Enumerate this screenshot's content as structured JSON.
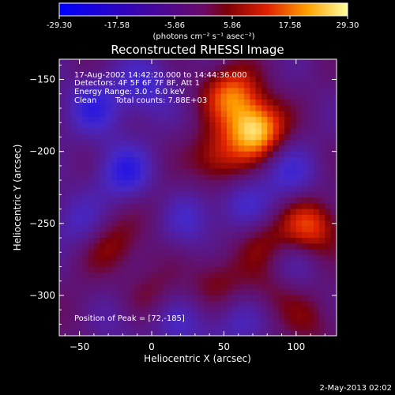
{
  "colorbar": {
    "ticks": [
      "-29.30",
      "-17.58",
      "-5.86",
      "5.86",
      "17.58",
      "29.30"
    ],
    "vmin": -29.3,
    "vmax": 29.3,
    "unit_label": "(photons cm⁻² s⁻¹ asec⁻²)"
  },
  "chart_data": {
    "type": "heatmap",
    "title": "Reconstructed RHESSI Image",
    "xlabel": "Heliocentric X (arcsec)",
    "ylabel": "Heliocentric Y (arcsec)",
    "xlim": [
      -64,
      128
    ],
    "ylim": [
      -328,
      -136
    ],
    "xticks": [
      -50,
      0,
      50,
      100
    ],
    "yticks": [
      -150,
      -200,
      -250,
      -300
    ],
    "annotations": [
      "17-Aug-2002 14:42:20.000 to 14:44:36.000",
      "Detectors: 4F 5F 6F 7F 8F, Att 1",
      "Energy Range: 3.0 - 6.0 keV",
      "Clean",
      "Total counts: 7.88E+03"
    ],
    "peak_label": "Position of Peak = [72,-185]",
    "peak_value": 29.3,
    "peak_position": [
      72,
      -185
    ],
    "sources": [
      {
        "x": 72,
        "y": -185,
        "amp": 29.3
      },
      {
        "x": 55,
        "y": -160,
        "amp": 20
      },
      {
        "x": 45,
        "y": -205,
        "amp": 14
      },
      {
        "x": 110,
        "y": -252,
        "amp": 18
      },
      {
        "x": -28,
        "y": -265,
        "amp": 11
      },
      {
        "x": 10,
        "y": -240,
        "amp": 8
      },
      {
        "x": 78,
        "y": -262,
        "amp": 10
      },
      {
        "x": 85,
        "y": -295,
        "amp": 8
      },
      {
        "x": 45,
        "y": -290,
        "amp": 9
      },
      {
        "x": 110,
        "y": -318,
        "amp": 7
      },
      {
        "x": 0,
        "y": -300,
        "amp": 7
      },
      {
        "x": -45,
        "y": -312,
        "amp": 6
      },
      {
        "x": -18,
        "y": -215,
        "amp": -15
      },
      {
        "x": 22,
        "y": -245,
        "amp": -14
      },
      {
        "x": -5,
        "y": -155,
        "amp": -12
      },
      {
        "x": 65,
        "y": -238,
        "amp": -10
      },
      {
        "x": 95,
        "y": -215,
        "amp": -11
      },
      {
        "x": -40,
        "y": -170,
        "amp": -13
      },
      {
        "x": 95,
        "y": -280,
        "amp": -8
      },
      {
        "x": -50,
        "y": -250,
        "amp": -9
      },
      {
        "x": 20,
        "y": -320,
        "amp": -9
      },
      {
        "x": -30,
        "y": -315,
        "amp": -8
      },
      {
        "x": 60,
        "y": -320,
        "amp": -8
      }
    ]
  },
  "footer": {
    "date": "2-May-2013 02:02"
  }
}
